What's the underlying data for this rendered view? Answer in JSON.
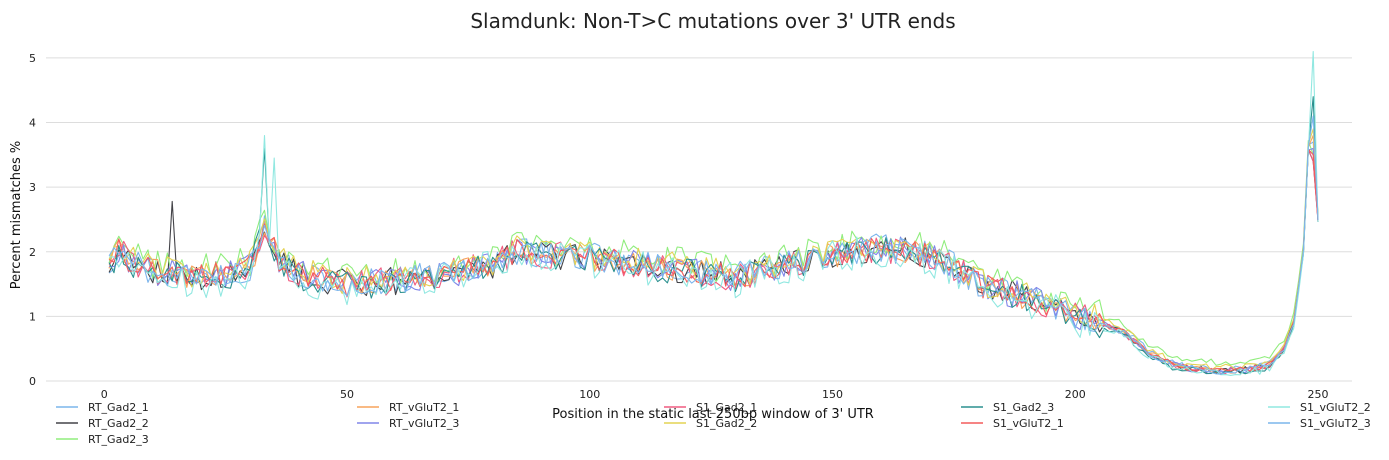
{
  "chart_data": {
    "type": "line",
    "title": "Slamdunk: Non-T>C mutations over 3' UTR ends",
    "xlabel": "Position in the static last 250bp window of 3' UTR",
    "ylabel": "Percent mismatches %",
    "xlim": [
      -12,
      257
    ],
    "ylim": [
      0,
      5.2
    ],
    "xticks": [
      0,
      50,
      100,
      150,
      200,
      250
    ],
    "yticks": [
      0,
      1,
      2,
      3,
      4,
      5
    ],
    "grid": "horizontal",
    "legend_position": "bottom",
    "base_profile": {
      "x": [
        1,
        3,
        5,
        8,
        10,
        15,
        20,
        25,
        30,
        33,
        36,
        40,
        50,
        60,
        70,
        80,
        85,
        90,
        100,
        110,
        120,
        130,
        140,
        150,
        160,
        170,
        175,
        180,
        185,
        190,
        195,
        200,
        205,
        210,
        215,
        220,
        225,
        230,
        235,
        240,
        243,
        245,
        247,
        248,
        249,
        250
      ],
      "y": [
        1.75,
        2.05,
        1.9,
        1.75,
        1.7,
        1.65,
        1.6,
        1.65,
        1.75,
        2.4,
        1.85,
        1.65,
        1.5,
        1.55,
        1.65,
        1.8,
        2.0,
        1.95,
        1.9,
        1.8,
        1.7,
        1.6,
        1.8,
        1.95,
        2.05,
        1.95,
        1.75,
        1.5,
        1.4,
        1.3,
        1.15,
        1.0,
        0.9,
        0.75,
        0.45,
        0.25,
        0.18,
        0.15,
        0.18,
        0.25,
        0.5,
        0.9,
        2.0,
        3.6,
        4.0,
        2.5
      ]
    },
    "series": [
      {
        "name": "RT_Gad2_1",
        "color": "#7cb5ec",
        "offset": 0.02,
        "noise": 0.22,
        "peak": 3.7
      },
      {
        "name": "RT_Gad2_2",
        "color": "#434348",
        "offset": 0.0,
        "noise": 0.22,
        "peak": 3.4
      },
      {
        "name": "RT_Gad2_3",
        "color": "#90ed7d",
        "offset": 0.12,
        "noise": 0.24,
        "peak": 3.5
      },
      {
        "name": "RT_vGluT2_1",
        "color": "#f7a35c",
        "offset": 0.0,
        "noise": 0.2,
        "peak": 3.8
      },
      {
        "name": "RT_vGluT2_3",
        "color": "#8085e9",
        "offset": 0.0,
        "noise": 0.22,
        "peak": 3.6
      },
      {
        "name": "S1_Gad2_1",
        "color": "#f15c80",
        "offset": 0.0,
        "noise": 0.22,
        "peak": 3.4
      },
      {
        "name": "S1_Gad2_2",
        "color": "#e4d354",
        "offset": 0.05,
        "noise": 0.22,
        "peak": 3.9
      },
      {
        "name": "S1_Gad2_3",
        "color": "#2b908f",
        "offset": -0.03,
        "noise": 0.22,
        "peak": 4.4
      },
      {
        "name": "S1_vGluT2_1",
        "color": "#f45b5b",
        "offset": 0.0,
        "noise": 0.2,
        "peak": 3.5
      },
      {
        "name": "S1_vGluT2_2",
        "color": "#91e8e1",
        "offset": -0.05,
        "noise": 0.28,
        "peak": 5.1
      },
      {
        "name": "S1_vGluT2_3",
        "color": "#7cb5ec",
        "offset": 0.0,
        "noise": 0.2,
        "peak": 4.1
      }
    ],
    "legend_order": [
      [
        "RT_Gad2_1",
        "RT_Gad2_2",
        "RT_Gad2_3"
      ],
      [
        "RT_vGluT2_1",
        "RT_vGluT2_3"
      ],
      [
        "S1_Gad2_1",
        "S1_Gad2_2"
      ],
      [
        "S1_Gad2_3",
        "S1_vGluT2_1"
      ],
      [
        "S1_vGluT2_2",
        "S1_vGluT2_3"
      ]
    ]
  }
}
